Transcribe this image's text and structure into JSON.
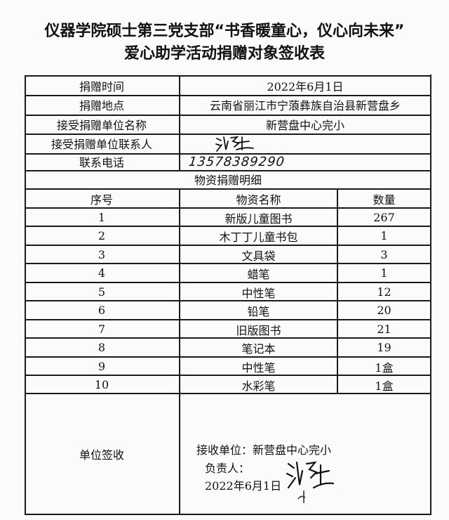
{
  "document": {
    "title_line1": "仪器学院硕士第三党支部“书香暖童心，仪心向未来”",
    "title_line2": "爱心助学活动捐赠对象签收表"
  },
  "info": {
    "rows": [
      {
        "label": "捐赠时间",
        "value": "2022年6月1日"
      },
      {
        "label": "捐赠地点",
        "value": "云南省丽江市宁蒗彝族自治县新营盘乡"
      },
      {
        "label": "接受捐赠单位名称",
        "value": "新营盘中心完小"
      },
      {
        "label": "接受捐赠单位联系人",
        "value": ""
      },
      {
        "label": "联系电话",
        "value": "13578389290"
      }
    ]
  },
  "details": {
    "section_title": "物资捐赠明细",
    "headers": [
      "序号",
      "物资名称",
      "数量"
    ],
    "rows": [
      [
        "1",
        "新版儿童图书",
        "267"
      ],
      [
        "2",
        "木丁丁儿童书包",
        "1"
      ],
      [
        "3",
        "文具袋",
        "3"
      ],
      [
        "4",
        "蜡笔",
        "1"
      ],
      [
        "5",
        "中性笔",
        "12"
      ],
      [
        "6",
        "铅笔",
        "20"
      ],
      [
        "7",
        "旧版图书",
        "21"
      ],
      [
        "8",
        "笔记本",
        "19"
      ],
      [
        "9",
        "中性笔",
        "1盒"
      ],
      [
        "10",
        "水彩笔",
        "1盒"
      ]
    ]
  },
  "signoff": {
    "label": "单位签收",
    "receiving_unit": "接收单位：新营盘中心完小",
    "person_in_charge": "负责人：",
    "date": "2022年6月1日"
  }
}
